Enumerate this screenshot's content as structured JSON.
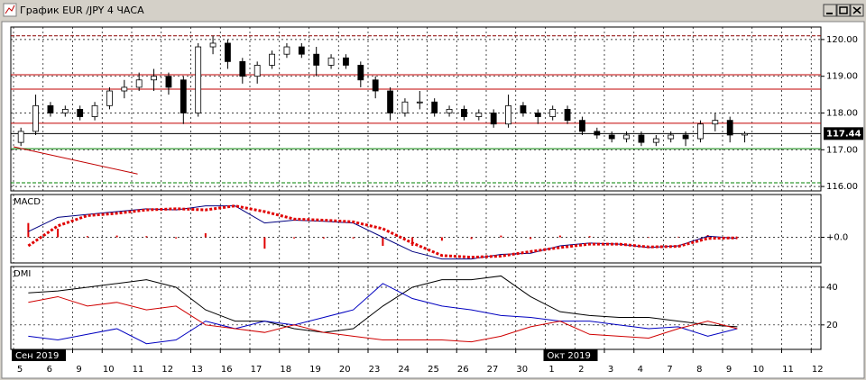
{
  "window": {
    "title": "График EUR /JPY  4 ЧАСА"
  },
  "x_axis": {
    "categories": [
      "5",
      "6",
      "9",
      "10",
      "11",
      "12",
      "13",
      "16",
      "17",
      "18",
      "19",
      "20",
      "23",
      "24",
      "25",
      "26",
      "27",
      "30",
      "1",
      "2",
      "3",
      "4",
      "7",
      "8",
      "9",
      "10",
      "11",
      "12"
    ],
    "month_labels": [
      "Сен 2019",
      null,
      null,
      null,
      null,
      null,
      null,
      null,
      null,
      null,
      null,
      null,
      null,
      null,
      null,
      null,
      null,
      null,
      "Окт 2019",
      null,
      null,
      null,
      null,
      null,
      null,
      null,
      null,
      null
    ]
  },
  "chart_data": [
    {
      "type": "candlestick",
      "ylim": [
        115.88,
        120.34
      ],
      "yticks": [
        {
          "value": 116,
          "label": "116.00"
        },
        {
          "value": 117,
          "label": "117.00"
        },
        {
          "value": 118,
          "label": "118.00"
        },
        {
          "value": 119,
          "label": "119.00"
        },
        {
          "value": 120,
          "label": "120.00"
        }
      ],
      "grid": true,
      "up_color": "#ffffff",
      "down_color": "#000000",
      "candles": [
        [
          117.2,
          117.6,
          117.1,
          117.5
        ],
        [
          117.5,
          118.5,
          117.4,
          118.2
        ],
        [
          118.2,
          118.3,
          117.9,
          118.0
        ],
        [
          118.0,
          118.2,
          117.9,
          118.1
        ],
        [
          118.1,
          118.2,
          117.8,
          117.9
        ],
        [
          117.9,
          118.3,
          117.8,
          118.2
        ],
        [
          118.2,
          118.7,
          118.1,
          118.6
        ],
        [
          118.6,
          118.9,
          118.4,
          118.7
        ],
        [
          118.7,
          119.1,
          118.6,
          118.9
        ],
        [
          118.9,
          119.2,
          118.6,
          119.0
        ],
        [
          119.0,
          119.1,
          118.5,
          118.7
        ],
        [
          118.9,
          119.0,
          117.7,
          118.0
        ],
        [
          118.0,
          119.9,
          117.9,
          119.8
        ],
        [
          119.8,
          120.1,
          119.6,
          119.9
        ],
        [
          119.9,
          120.0,
          119.2,
          119.4
        ],
        [
          119.4,
          119.5,
          118.8,
          119.0
        ],
        [
          119.0,
          119.4,
          118.8,
          119.3
        ],
        [
          119.3,
          119.7,
          119.2,
          119.6
        ],
        [
          119.6,
          119.9,
          119.5,
          119.8
        ],
        [
          119.8,
          119.9,
          119.5,
          119.6
        ],
        [
          119.6,
          119.8,
          119.0,
          119.3
        ],
        [
          119.3,
          119.6,
          119.2,
          119.5
        ],
        [
          119.5,
          119.6,
          119.2,
          119.3
        ],
        [
          119.3,
          119.4,
          118.7,
          118.9
        ],
        [
          118.9,
          119.0,
          118.4,
          118.6
        ],
        [
          118.6,
          118.7,
          117.8,
          118.0
        ],
        [
          118.0,
          118.4,
          117.9,
          118.3
        ],
        [
          118.3,
          118.6,
          118.1,
          118.3
        ],
        [
          118.3,
          118.4,
          117.9,
          118.0
        ],
        [
          118.0,
          118.2,
          117.9,
          118.1
        ],
        [
          118.1,
          118.2,
          117.8,
          117.9
        ],
        [
          117.9,
          118.1,
          117.8,
          118.0
        ],
        [
          118.0,
          118.1,
          117.6,
          117.7
        ],
        [
          117.7,
          118.5,
          117.6,
          118.2
        ],
        [
          118.2,
          118.3,
          117.9,
          118.0
        ],
        [
          118.0,
          118.1,
          117.7,
          117.9
        ],
        [
          117.9,
          118.2,
          117.8,
          118.1
        ],
        [
          118.1,
          118.2,
          117.7,
          117.8
        ],
        [
          117.8,
          117.9,
          117.4,
          117.5
        ],
        [
          117.5,
          117.6,
          117.3,
          117.4
        ],
        [
          117.4,
          117.5,
          117.2,
          117.3
        ],
        [
          117.3,
          117.5,
          117.2,
          117.4
        ],
        [
          117.4,
          117.5,
          117.1,
          117.2
        ],
        [
          117.2,
          117.4,
          117.1,
          117.3
        ],
        [
          117.3,
          117.5,
          117.2,
          117.4
        ],
        [
          117.4,
          117.5,
          117.1,
          117.3
        ],
        [
          117.3,
          117.8,
          117.2,
          117.7
        ],
        [
          117.7,
          118.0,
          117.5,
          117.8
        ],
        [
          117.8,
          117.9,
          117.2,
          117.4
        ],
        [
          117.4,
          117.5,
          117.2,
          117.44
        ]
      ],
      "last_price": 117.44,
      "levels": [
        {
          "value": 120.1,
          "color": "#8b0000",
          "dashed": true
        },
        {
          "value": 119.04,
          "color": "#c00000",
          "dashed": false
        },
        {
          "value": 118.65,
          "color": "#c00000",
          "dashed": false
        },
        {
          "value": 117.72,
          "color": "#c00000",
          "dashed": false
        },
        {
          "value": 117.03,
          "color": "#008000",
          "dashed": false
        },
        {
          "value": 116.1,
          "color": "#008000",
          "dashed": true
        }
      ],
      "trendline": {
        "x": [
          0,
          4.2
        ],
        "values": [
          117.08,
          116.34
        ],
        "color": "#c00000"
      }
    },
    {
      "type": "macd",
      "title": "MACD",
      "ylim": [
        -0.45,
        0.75
      ],
      "yticks": [
        {
          "value": 0,
          "label": "+0.0"
        }
      ],
      "grid": true,
      "series": [
        {
          "style": "histogram",
          "color": "#e00000",
          "values": [
            0.25,
            0.15,
            0.02,
            0.03,
            0.02,
            -0.02,
            0.07,
            0,
            -0.2,
            -0.02,
            -0.02,
            -0.02,
            -0.15,
            -0.15,
            -0.06,
            -0.03,
            0.03,
            -0.03,
            0.03,
            0.02,
            0,
            -0.01,
            0.01,
            0.04,
            -0.01,
            null,
            null,
            null
          ]
        },
        {
          "style": "line",
          "color": "#000080",
          "values": [
            0.1,
            0.35,
            0.4,
            0.45,
            0.5,
            0.48,
            0.55,
            0.55,
            0.25,
            0.3,
            0.28,
            0.25,
            0.0,
            -0.25,
            -0.38,
            -0.38,
            -0.3,
            -0.28,
            -0.15,
            -0.1,
            -0.12,
            -0.18,
            -0.15,
            0.02,
            -0.02,
            null,
            null,
            null
          ]
        },
        {
          "style": "dots",
          "color": "#e00000",
          "values": [
            -0.15,
            0.2,
            0.38,
            0.42,
            0.48,
            0.5,
            0.48,
            0.55,
            0.45,
            0.32,
            0.3,
            0.27,
            0.15,
            -0.1,
            -0.32,
            -0.35,
            -0.33,
            -0.25,
            -0.18,
            -0.12,
            -0.12,
            -0.17,
            -0.16,
            -0.02,
            -0.01,
            null,
            null,
            null
          ]
        }
      ]
    },
    {
      "type": "line",
      "title": "DMI",
      "ylim": [
        7,
        51
      ],
      "yticks": [
        20,
        40
      ],
      "grid": true,
      "series": [
        {
          "color": "#000000",
          "values": [
            37,
            38,
            40,
            42,
            44,
            40,
            28,
            22,
            22,
            18,
            16,
            18,
            30,
            40,
            44,
            44,
            46,
            35,
            27,
            25,
            24,
            24,
            22,
            20,
            19,
            null,
            null,
            null
          ]
        },
        {
          "color": "#0000c0",
          "values": [
            14,
            12,
            15,
            18,
            10,
            12,
            22,
            18,
            22,
            20,
            24,
            28,
            42,
            34,
            30,
            28,
            25,
            24,
            22,
            22,
            20,
            18,
            19,
            14,
            18,
            null,
            null,
            null
          ]
        },
        {
          "color": "#d00000",
          "values": [
            32,
            35,
            30,
            32,
            28,
            30,
            20,
            18,
            16,
            20,
            16,
            14,
            12,
            12,
            12,
            11,
            14,
            19,
            22,
            15,
            14,
            13,
            18,
            22,
            18,
            null,
            null,
            null
          ]
        }
      ]
    }
  ]
}
